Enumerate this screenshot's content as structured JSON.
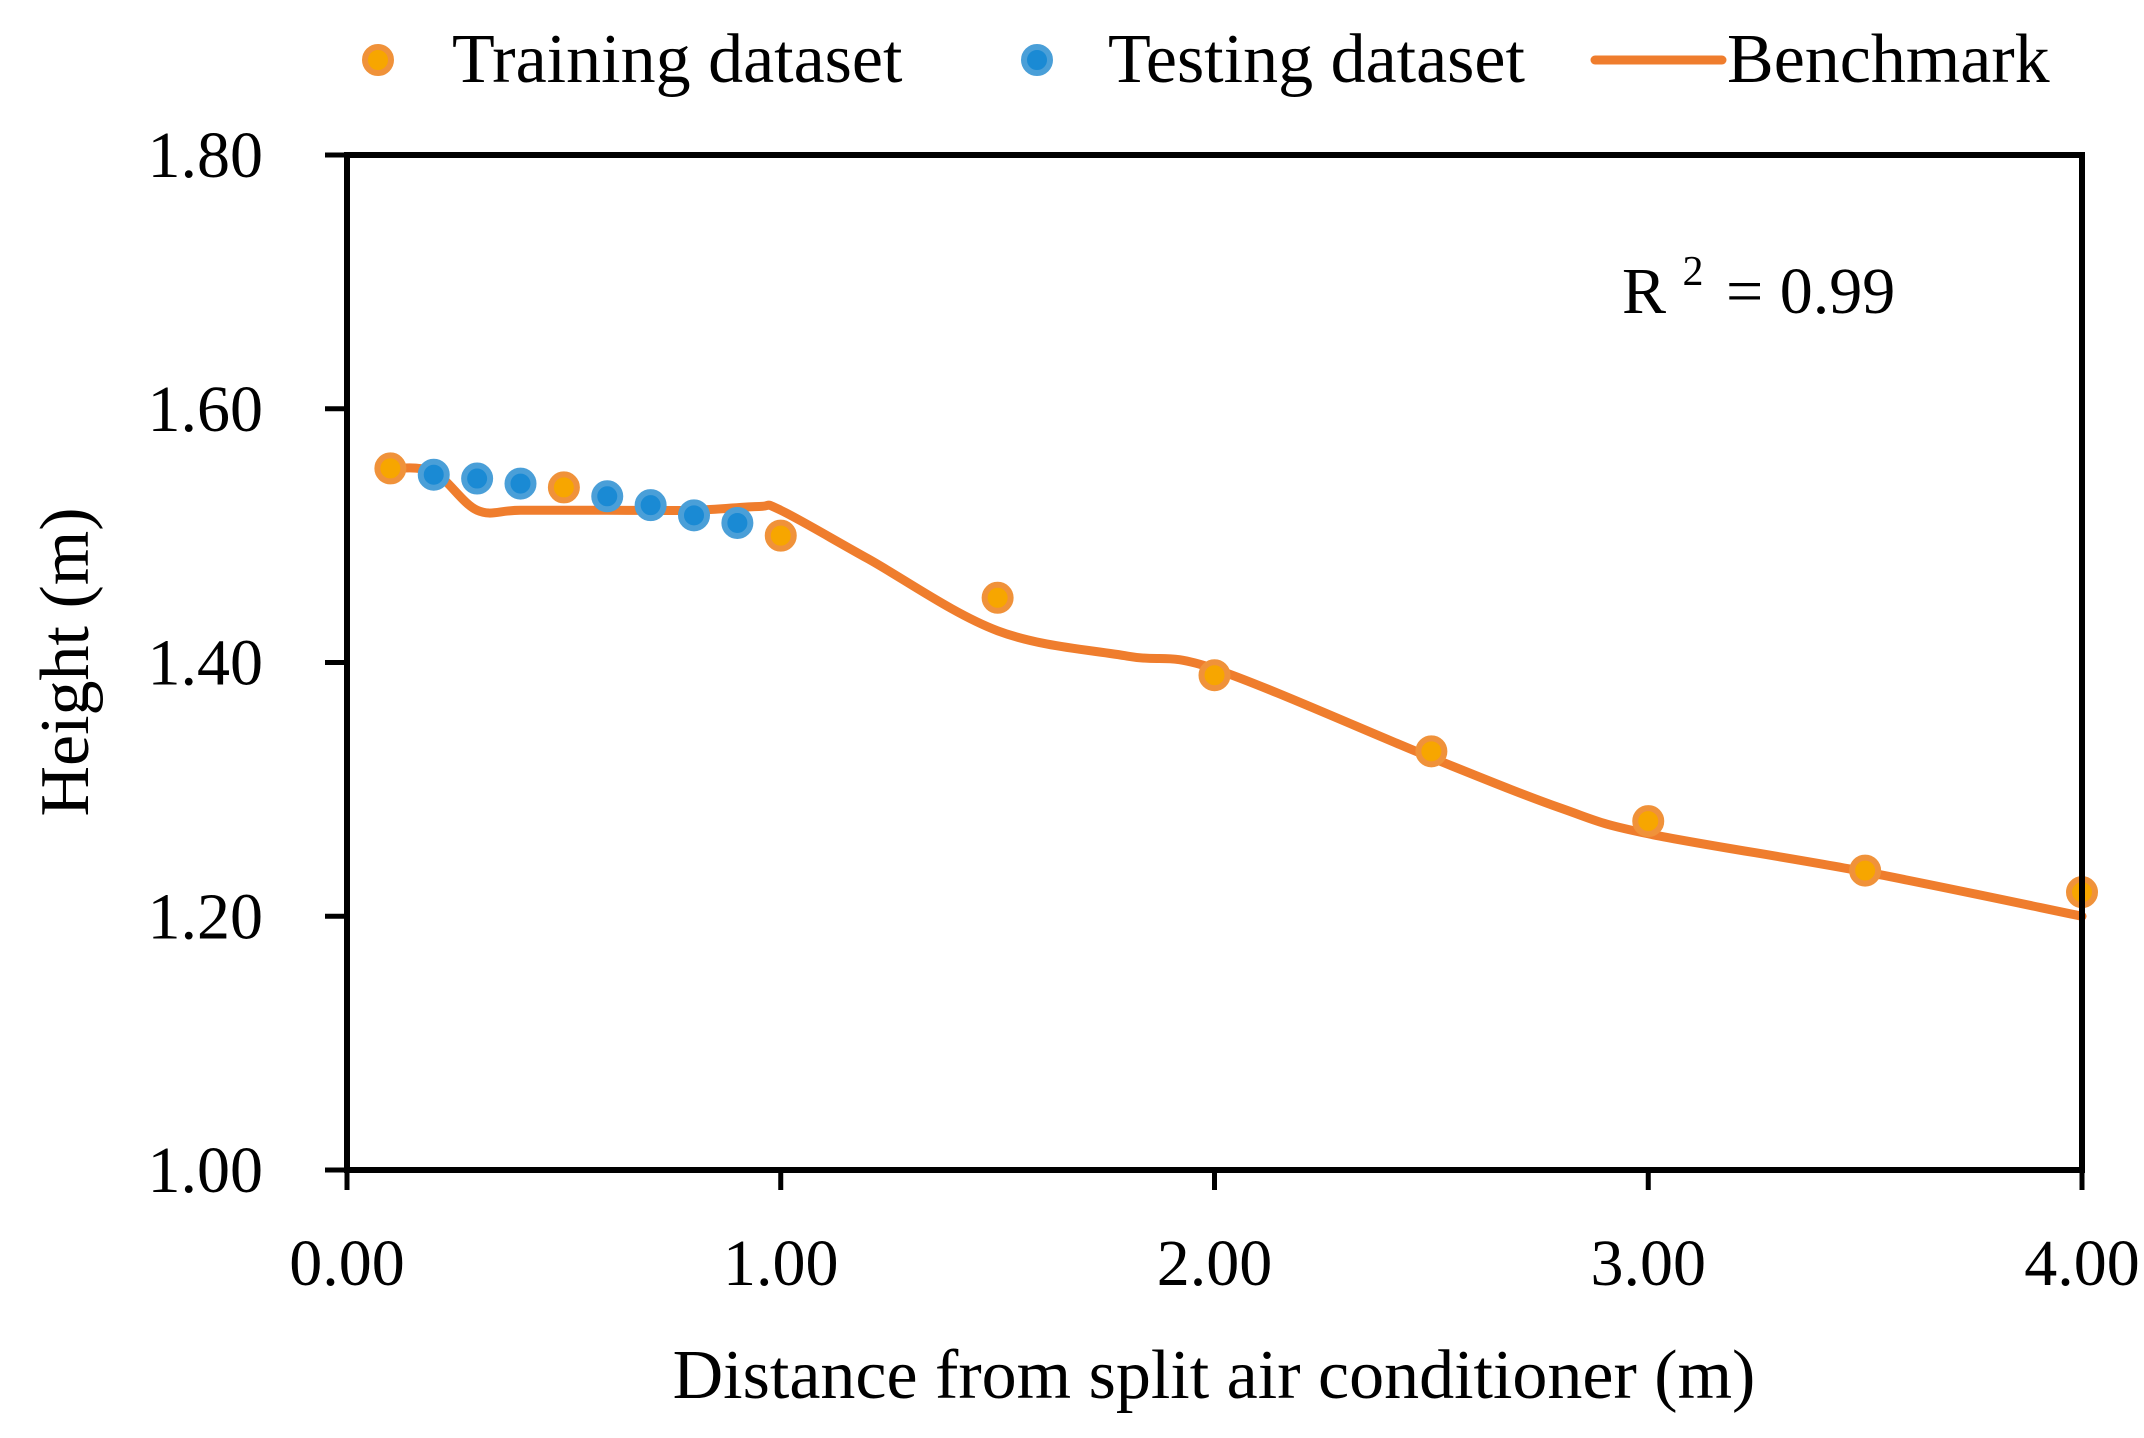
{
  "chart_data": {
    "type": "scatter",
    "title": "",
    "xlabel": "Distance from split air conditioner (m)",
    "ylabel": "Height (m)",
    "xlim": [
      0,
      4
    ],
    "ylim": [
      1.0,
      1.8
    ],
    "x_ticks": [
      "0.00",
      "1.00",
      "2.00",
      "3.00",
      "4.00"
    ],
    "y_ticks": [
      "1.00",
      "1.20",
      "1.40",
      "1.60",
      "1.80"
    ],
    "legend_position": "top",
    "grid": false,
    "annotation": {
      "base": "R",
      "sup": "2",
      "rest": "= 0.99"
    },
    "colors": {
      "training_fill": "#f7a600",
      "training_edge": "#f0923a",
      "testing_fill": "#1a8ad4",
      "testing_edge": "#4a9fd8",
      "benchmark": "#ef7d2d"
    },
    "series": [
      {
        "name": "Training dataset",
        "kind": "points",
        "points": [
          [
            0.1,
            1.553
          ],
          [
            0.5,
            1.538
          ],
          [
            1.0,
            1.5
          ],
          [
            1.5,
            1.451
          ],
          [
            2.0,
            1.39
          ],
          [
            2.5,
            1.33
          ],
          [
            3.0,
            1.275
          ],
          [
            3.5,
            1.236
          ],
          [
            4.0,
            1.219
          ]
        ]
      },
      {
        "name": "Testing dataset",
        "kind": "points",
        "points": [
          [
            0.2,
            1.548
          ],
          [
            0.3,
            1.545
          ],
          [
            0.4,
            1.541
          ],
          [
            0.6,
            1.531
          ],
          [
            0.7,
            1.524
          ],
          [
            0.8,
            1.516
          ],
          [
            0.9,
            1.51
          ]
        ]
      },
      {
        "name": "Benchmark",
        "kind": "line",
        "points": [
          [
            0.1,
            1.553
          ],
          [
            0.2,
            1.55
          ],
          [
            0.3,
            1.52
          ],
          [
            0.4,
            1.52
          ],
          [
            0.6,
            1.52
          ],
          [
            0.8,
            1.52
          ],
          [
            0.95,
            1.523
          ],
          [
            1.0,
            1.52
          ],
          [
            1.2,
            1.482
          ],
          [
            1.5,
            1.425
          ],
          [
            1.8,
            1.405
          ],
          [
            2.0,
            1.395
          ],
          [
            2.5,
            1.325
          ],
          [
            2.8,
            1.285
          ],
          [
            3.0,
            1.265
          ],
          [
            3.5,
            1.235
          ],
          [
            4.0,
            1.2
          ]
        ]
      }
    ]
  }
}
